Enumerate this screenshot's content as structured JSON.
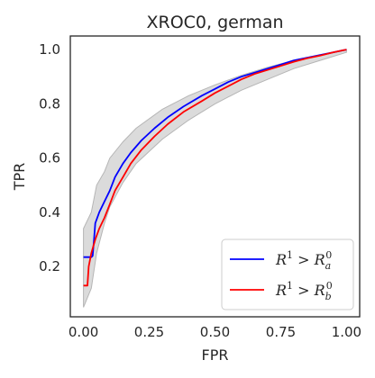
{
  "chart_data": {
    "type": "line",
    "title": "XROC0, german",
    "xlabel": "FPR",
    "ylabel": "TPR",
    "xlim": [
      -0.05,
      1.05
    ],
    "ylim": [
      0.015,
      1.05
    ],
    "x_ticks": [
      0.0,
      0.25,
      0.5,
      0.75,
      1.0
    ],
    "x_tick_labels": [
      "0.00",
      "0.25",
      "0.50",
      "0.75",
      "1.00"
    ],
    "y_ticks": [
      0.2,
      0.4,
      0.6,
      0.8,
      1.0
    ],
    "y_tick_labels": [
      "0.2",
      "0.4",
      "0.6",
      "0.8",
      "1.0"
    ],
    "grid": false,
    "legend_position": "lower-right",
    "series": [
      {
        "name": "R^1 > R_a^0",
        "legend": {
          "base": "R",
          "sup1": "1",
          "op": ">",
          "base2": "R",
          "sub": "a",
          "sup2": "0"
        },
        "color": "#0000ff",
        "points": [
          [
            0.0,
            0.235
          ],
          [
            0.03,
            0.235
          ],
          [
            0.035,
            0.24
          ],
          [
            0.04,
            0.3
          ],
          [
            0.045,
            0.36
          ],
          [
            0.06,
            0.4
          ],
          [
            0.08,
            0.44
          ],
          [
            0.1,
            0.48
          ],
          [
            0.12,
            0.53
          ],
          [
            0.15,
            0.58
          ],
          [
            0.18,
            0.62
          ],
          [
            0.22,
            0.665
          ],
          [
            0.27,
            0.71
          ],
          [
            0.32,
            0.75
          ],
          [
            0.38,
            0.79
          ],
          [
            0.45,
            0.83
          ],
          [
            0.5,
            0.855
          ],
          [
            0.55,
            0.88
          ],
          [
            0.6,
            0.9
          ],
          [
            0.65,
            0.915
          ],
          [
            0.7,
            0.93
          ],
          [
            0.75,
            0.945
          ],
          [
            0.8,
            0.96
          ],
          [
            0.85,
            0.97
          ],
          [
            0.9,
            0.98
          ],
          [
            0.95,
            0.99
          ],
          [
            1.0,
            1.0
          ]
        ]
      },
      {
        "name": "R^1 > R_b^0",
        "legend": {
          "base": "R",
          "sup1": "1",
          "op": ">",
          "base2": "R",
          "sub": "b",
          "sup2": "0"
        },
        "color": "#ff0000",
        "points": [
          [
            0.0,
            0.13
          ],
          [
            0.015,
            0.13
          ],
          [
            0.02,
            0.2
          ],
          [
            0.03,
            0.25
          ],
          [
            0.045,
            0.3
          ],
          [
            0.06,
            0.34
          ],
          [
            0.08,
            0.38
          ],
          [
            0.1,
            0.43
          ],
          [
            0.12,
            0.48
          ],
          [
            0.15,
            0.53
          ],
          [
            0.18,
            0.58
          ],
          [
            0.22,
            0.63
          ],
          [
            0.27,
            0.68
          ],
          [
            0.32,
            0.725
          ],
          [
            0.38,
            0.77
          ],
          [
            0.45,
            0.81
          ],
          [
            0.5,
            0.84
          ],
          [
            0.55,
            0.865
          ],
          [
            0.6,
            0.89
          ],
          [
            0.65,
            0.91
          ],
          [
            0.7,
            0.925
          ],
          [
            0.75,
            0.94
          ],
          [
            0.8,
            0.955
          ],
          [
            0.85,
            0.968
          ],
          [
            0.9,
            0.978
          ],
          [
            0.95,
            0.99
          ],
          [
            1.0,
            1.0
          ]
        ]
      }
    ],
    "band": {
      "color": "#cfcfcf",
      "upper": [
        [
          0.0,
          0.34
        ],
        [
          0.03,
          0.4
        ],
        [
          0.05,
          0.5
        ],
        [
          0.08,
          0.55
        ],
        [
          0.1,
          0.6
        ],
        [
          0.15,
          0.66
        ],
        [
          0.2,
          0.71
        ],
        [
          0.3,
          0.78
        ],
        [
          0.4,
          0.83
        ],
        [
          0.5,
          0.87
        ],
        [
          0.6,
          0.905
        ],
        [
          0.7,
          0.935
        ],
        [
          0.8,
          0.96
        ],
        [
          0.9,
          0.98
        ],
        [
          1.0,
          1.0
        ]
      ],
      "lower": [
        [
          1.0,
          0.99
        ],
        [
          0.9,
          0.96
        ],
        [
          0.8,
          0.93
        ],
        [
          0.7,
          0.89
        ],
        [
          0.6,
          0.85
        ],
        [
          0.5,
          0.8
        ],
        [
          0.4,
          0.74
        ],
        [
          0.3,
          0.67
        ],
        [
          0.2,
          0.58
        ],
        [
          0.15,
          0.51
        ],
        [
          0.1,
          0.42
        ],
        [
          0.08,
          0.36
        ],
        [
          0.05,
          0.25
        ],
        [
          0.03,
          0.12
        ],
        [
          0.0,
          0.05
        ]
      ]
    }
  }
}
